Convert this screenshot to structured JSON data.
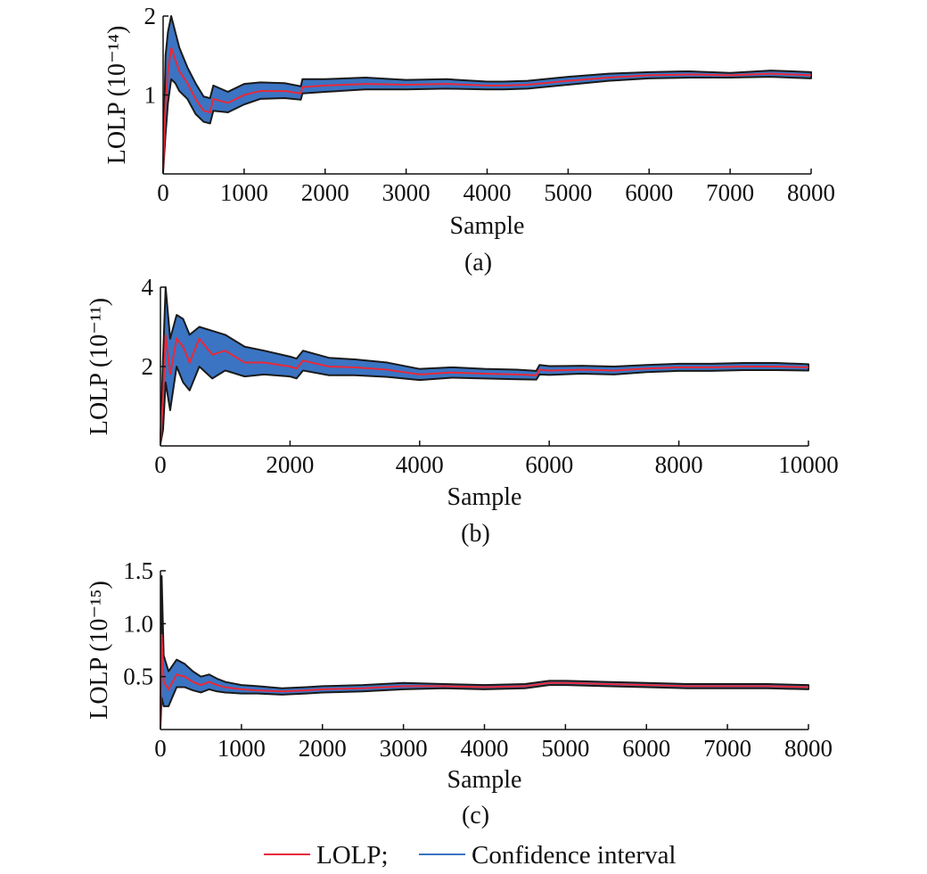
{
  "figure": {
    "legend": {
      "entries": [
        {
          "name": "LOLP;",
          "color": "#e8293a"
        },
        {
          "name": "Confidence interval",
          "color": "#3b74c3"
        }
      ],
      "placement": "bottom-center"
    }
  },
  "chart_data": [
    {
      "type": "area",
      "caption": "(a)",
      "xlabel": "Sample",
      "ylabel": "LOLP (10⁻¹⁴)",
      "xlim": [
        0,
        8000
      ],
      "ylim": [
        0,
        2
      ],
      "xticks": [
        0,
        1000,
        2000,
        3000,
        4000,
        5000,
        6000,
        7000,
        8000
      ],
      "xtick_labels": [
        "0",
        "1000",
        "2000",
        "3000",
        "4000",
        "5000",
        "6000",
        "7000",
        "8000"
      ],
      "yticks": [
        1,
        2
      ],
      "ytick_labels": [
        "1",
        "2"
      ],
      "grid": false,
      "series": [
        {
          "name": "LOLP;",
          "color": "#e8293a",
          "x": [
            0,
            30,
            60,
            100,
            150,
            200,
            300,
            400,
            500,
            580,
            620,
            800,
            1000,
            1200,
            1500,
            1700,
            1720,
            2000,
            2500,
            3000,
            3500,
            4000,
            4200,
            4500,
            5000,
            5500,
            6000,
            6500,
            7000,
            7500,
            8000
          ],
          "values": [
            0.05,
            0.9,
            1.3,
            1.6,
            1.45,
            1.3,
            1.15,
            0.95,
            0.8,
            0.78,
            0.95,
            0.9,
            1.0,
            1.05,
            1.05,
            1.02,
            1.1,
            1.12,
            1.14,
            1.13,
            1.14,
            1.12,
            1.12,
            1.13,
            1.18,
            1.22,
            1.25,
            1.26,
            1.25,
            1.27,
            1.25
          ]
        },
        {
          "name": "Confidence interval",
          "color": "#3b74c3",
          "x": [
            0,
            30,
            60,
            100,
            150,
            200,
            300,
            400,
            500,
            580,
            620,
            800,
            1000,
            1200,
            1500,
            1700,
            1720,
            2000,
            2500,
            3000,
            3500,
            4000,
            4200,
            4500,
            5000,
            5500,
            6000,
            6500,
            7000,
            7500,
            8000
          ],
          "lower": [
            0.02,
            0.5,
            0.9,
            1.2,
            1.15,
            1.05,
            0.95,
            0.76,
            0.66,
            0.64,
            0.8,
            0.78,
            0.88,
            0.95,
            0.96,
            0.94,
            1.02,
            1.04,
            1.07,
            1.07,
            1.08,
            1.07,
            1.07,
            1.08,
            1.13,
            1.18,
            1.21,
            1.22,
            1.22,
            1.23,
            1.21
          ],
          "upper": [
            0.1,
            1.5,
            1.8,
            2.0,
            1.8,
            1.6,
            1.35,
            1.15,
            0.98,
            0.96,
            1.12,
            1.04,
            1.14,
            1.16,
            1.15,
            1.11,
            1.2,
            1.2,
            1.22,
            1.19,
            1.2,
            1.17,
            1.17,
            1.18,
            1.23,
            1.27,
            1.29,
            1.3,
            1.28,
            1.31,
            1.29
          ]
        }
      ]
    },
    {
      "type": "area",
      "caption": "(b)",
      "xlabel": "Sample",
      "ylabel": "LOLP (10⁻¹¹)",
      "xlim": [
        0,
        10000
      ],
      "ylim": [
        0,
        4
      ],
      "xticks": [
        0,
        2000,
        4000,
        6000,
        8000,
        10000
      ],
      "xtick_labels": [
        "0",
        "2000",
        "4000",
        "6000",
        "8000",
        "10000"
      ],
      "yticks": [
        2,
        4
      ],
      "ytick_labels": [
        "2",
        "4"
      ],
      "grid": false,
      "series": [
        {
          "name": "LOLP;",
          "color": "#e8293a",
          "x": [
            0,
            40,
            80,
            150,
            250,
            350,
            450,
            600,
            800,
            1000,
            1300,
            1600,
            2000,
            2100,
            2200,
            2600,
            3000,
            3500,
            4000,
            4500,
            5000,
            5500,
            5800,
            5850,
            6000,
            6500,
            7000,
            7500,
            8000,
            8500,
            9000,
            9500,
            10000
          ],
          "values": [
            0.1,
            1.2,
            2.8,
            1.8,
            2.7,
            2.5,
            2.1,
            2.7,
            2.3,
            2.4,
            2.1,
            2.1,
            2.0,
            1.95,
            2.15,
            2.0,
            1.98,
            1.92,
            1.8,
            1.85,
            1.82,
            1.8,
            1.78,
            1.92,
            1.9,
            1.92,
            1.9,
            1.95,
            1.98,
            1.98,
            2.0,
            2.0,
            1.98
          ]
        },
        {
          "name": "Confidence interval",
          "color": "#3b74c3",
          "x": [
            0,
            40,
            80,
            150,
            250,
            350,
            450,
            600,
            800,
            1000,
            1300,
            1600,
            2000,
            2100,
            2200,
            2600,
            3000,
            3500,
            4000,
            4500,
            5000,
            5500,
            5800,
            5850,
            6000,
            6500,
            7000,
            7500,
            8000,
            8500,
            9000,
            9500,
            10000
          ],
          "lower": [
            0.05,
            0.4,
            1.6,
            0.9,
            2.0,
            1.6,
            1.4,
            2.0,
            1.7,
            1.9,
            1.75,
            1.8,
            1.75,
            1.7,
            1.9,
            1.78,
            1.78,
            1.74,
            1.66,
            1.72,
            1.7,
            1.68,
            1.67,
            1.8,
            1.79,
            1.82,
            1.8,
            1.86,
            1.89,
            1.89,
            1.91,
            1.91,
            1.9
          ],
          "upper": [
            0.2,
            2.2,
            4.0,
            2.7,
            3.3,
            3.2,
            2.8,
            3.0,
            2.9,
            2.8,
            2.5,
            2.4,
            2.25,
            2.2,
            2.4,
            2.22,
            2.18,
            2.1,
            1.94,
            1.98,
            1.94,
            1.92,
            1.89,
            2.04,
            2.01,
            2.02,
            2.0,
            2.04,
            2.07,
            2.07,
            2.09,
            2.09,
            2.06
          ]
        }
      ]
    },
    {
      "type": "area",
      "caption": "(c)",
      "xlabel": "Sample",
      "ylabel": "LOLP (10⁻¹⁵)",
      "xlim": [
        0,
        8000
      ],
      "ylim": [
        0,
        1.5
      ],
      "xticks": [
        0,
        1000,
        2000,
        3000,
        4000,
        5000,
        6000,
        7000,
        8000
      ],
      "xtick_labels": [
        "0",
        "1000",
        "2000",
        "3000",
        "4000",
        "5000",
        "6000",
        "7000",
        "8000"
      ],
      "yticks": [
        0.5,
        1.0,
        1.5
      ],
      "ytick_labels": [
        "0.5",
        "1.0",
        "1.5"
      ],
      "grid": false,
      "series": [
        {
          "name": "LOLP;",
          "color": "#e8293a",
          "x": [
            0,
            15,
            40,
            100,
            200,
            300,
            400,
            500,
            600,
            700,
            800,
            1000,
            1200,
            1500,
            1800,
            2000,
            2500,
            3000,
            3500,
            4000,
            4500,
            4800,
            5000,
            5500,
            6000,
            6500,
            7000,
            7500,
            8000
          ],
          "values": [
            0.05,
            0.9,
            0.45,
            0.38,
            0.52,
            0.5,
            0.45,
            0.42,
            0.45,
            0.42,
            0.4,
            0.38,
            0.37,
            0.36,
            0.37,
            0.38,
            0.39,
            0.41,
            0.41,
            0.4,
            0.41,
            0.44,
            0.44,
            0.43,
            0.42,
            0.41,
            0.41,
            0.41,
            0.4
          ]
        },
        {
          "name": "Confidence interval",
          "color": "#3b74c3",
          "x": [
            0,
            15,
            40,
            100,
            200,
            300,
            400,
            500,
            600,
            700,
            800,
            1000,
            1200,
            1500,
            1800,
            2000,
            2500,
            3000,
            3500,
            4000,
            4500,
            4800,
            5000,
            5500,
            6000,
            6500,
            7000,
            7500,
            8000
          ],
          "lower": [
            0.02,
            0.3,
            0.22,
            0.22,
            0.4,
            0.4,
            0.37,
            0.35,
            0.38,
            0.36,
            0.35,
            0.34,
            0.34,
            0.33,
            0.34,
            0.35,
            0.36,
            0.38,
            0.39,
            0.38,
            0.39,
            0.42,
            0.42,
            0.41,
            0.4,
            0.39,
            0.39,
            0.39,
            0.38
          ],
          "upper": [
            0.1,
            1.45,
            0.7,
            0.55,
            0.66,
            0.62,
            0.55,
            0.5,
            0.52,
            0.48,
            0.45,
            0.42,
            0.41,
            0.39,
            0.4,
            0.41,
            0.42,
            0.44,
            0.43,
            0.42,
            0.43,
            0.46,
            0.46,
            0.45,
            0.44,
            0.43,
            0.43,
            0.43,
            0.42
          ]
        }
      ]
    }
  ]
}
